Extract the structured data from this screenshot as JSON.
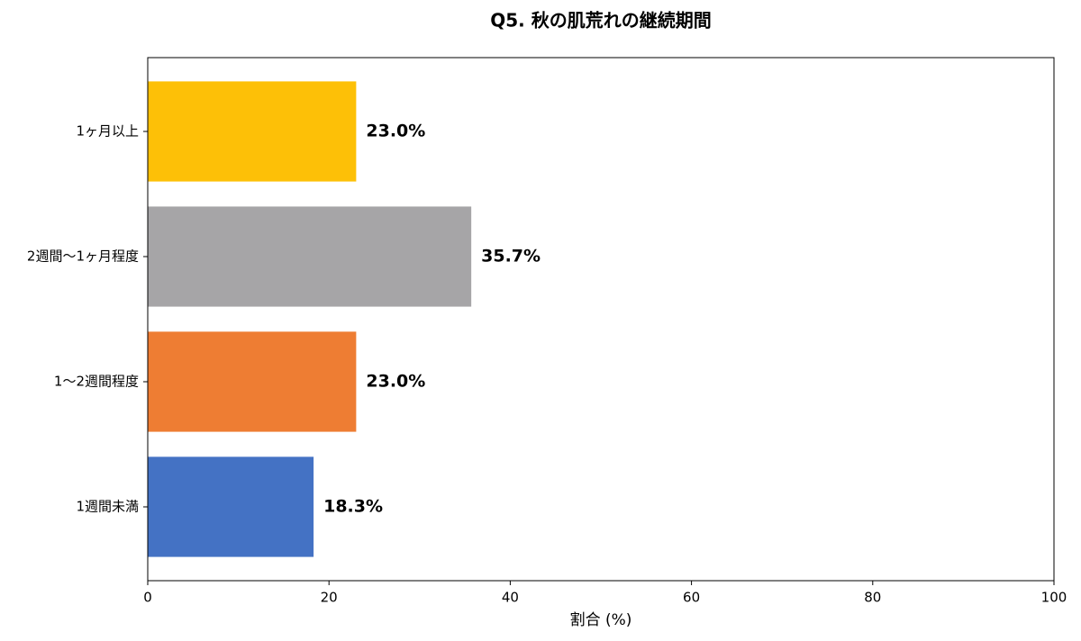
{
  "chart_data": {
    "type": "barh",
    "title": "Q5. 秋の肌荒れの継続期間",
    "x_label": "割合 (%)",
    "categories": [
      "1ヶ月以上",
      "2週間〜1ヶ月程度",
      "1〜2週間程度",
      "1週間未満"
    ],
    "values": [
      23.0,
      35.7,
      23.0,
      18.3
    ],
    "value_labels": [
      "23.0%",
      "35.7%",
      "23.0%",
      "18.3%"
    ],
    "colors": [
      "#fdc007",
      "#a6a5a7",
      "#ee7d33",
      "#4472c4"
    ],
    "xlim": [
      0,
      100
    ],
    "xticks": [
      0,
      20,
      40,
      60,
      80,
      100
    ]
  }
}
